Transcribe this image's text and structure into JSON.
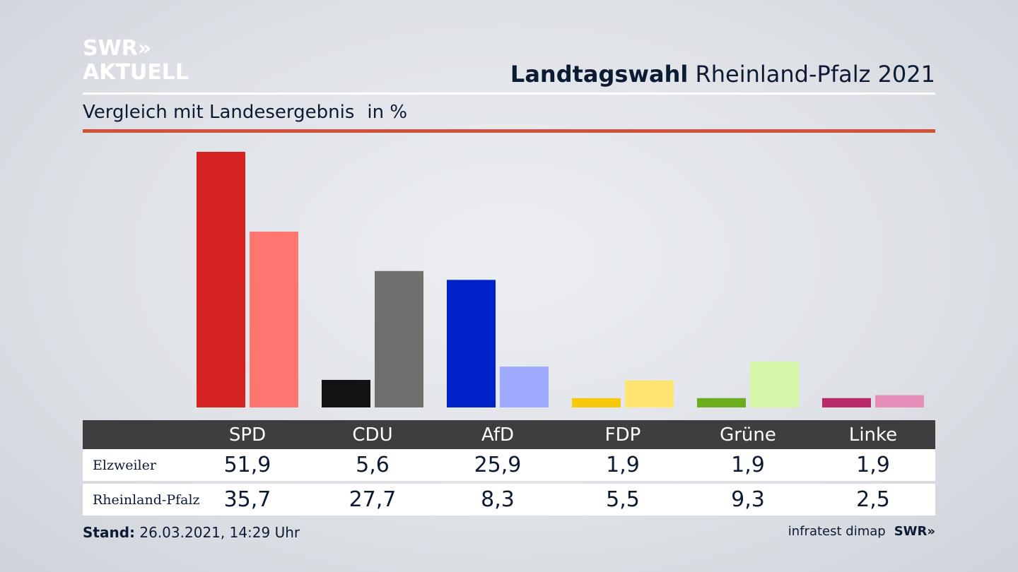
{
  "logo": {
    "line1": "SWR»",
    "line2": "AKTUELL"
  },
  "header": {
    "title_bold": "Landtagswahl",
    "title_rest": "Rheinland-Pfalz 2021"
  },
  "subtitle": {
    "text": "Vergleich mit Landesergebnis",
    "unit": "in %"
  },
  "colors": {
    "SPD": [
      "#d52221",
      "#ff7570"
    ],
    "CDU": [
      "#121212",
      "#706f6e"
    ],
    "AfD": [
      "#0022c8",
      "#9daaff"
    ],
    "FDP": [
      "#f6c90b",
      "#ffe470"
    ],
    "Grüne": [
      "#6aae1f",
      "#d6f7aa"
    ],
    "Linke": [
      "#b82a6a",
      "#e68fba"
    ]
  },
  "chart_data": {
    "type": "bar",
    "categories": [
      "SPD",
      "CDU",
      "AfD",
      "FDP",
      "Grüne",
      "Linke"
    ],
    "series": [
      {
        "name": "Elzweiler",
        "values": [
          51.9,
          5.6,
          25.9,
          1.9,
          1.9,
          1.9
        ]
      },
      {
        "name": "Rheinland-Pfalz",
        "values": [
          35.7,
          27.7,
          8.3,
          5.5,
          9.3,
          2.5
        ]
      }
    ],
    "title": "Landtagswahl Rheinland-Pfalz 2021",
    "subtitle": "Vergleich mit Landesergebnis",
    "unit": "in %",
    "ylim": [
      0,
      52
    ],
    "grid": false
  },
  "table": {
    "headers": [
      "SPD",
      "CDU",
      "AfD",
      "FDP",
      "Grüne",
      "Linke"
    ],
    "rows": [
      {
        "label": "Elzweiler",
        "values": [
          "51,9",
          "5,6",
          "25,9",
          "1,9",
          "1,9",
          "1,9"
        ]
      },
      {
        "label": "Rheinland-Pfalz",
        "values": [
          "35,7",
          "27,7",
          "8,3",
          "5,5",
          "9,3",
          "2,5"
        ]
      }
    ]
  },
  "footer": {
    "stand_label": "Stand:",
    "stand_value": "26.03.2021, 14:29 Uhr",
    "source": "infratest dimap",
    "brand": "SWR»"
  }
}
